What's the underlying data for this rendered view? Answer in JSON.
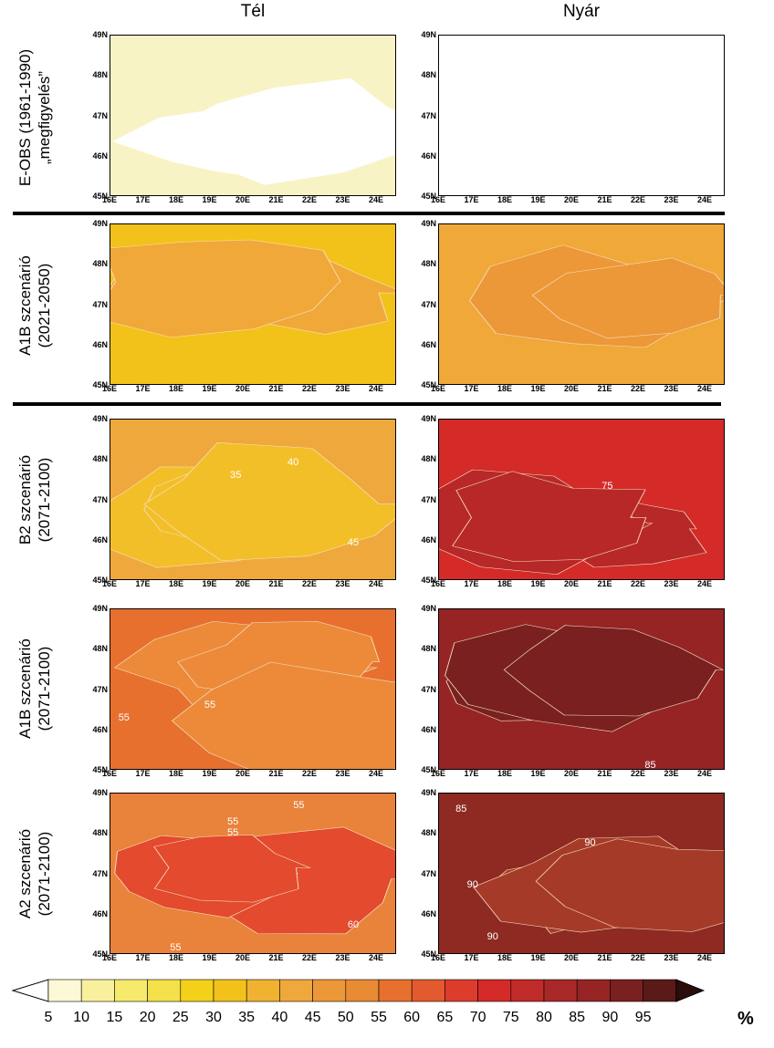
{
  "columns": [
    "Tél",
    "Nyár"
  ],
  "rows": [
    {
      "label_line1": "E-OBS (1961-1990)",
      "label_line2": "„megfigyelés”"
    },
    {
      "label_line1": "A1B szcenárió",
      "label_line2": "(2021-2050)"
    },
    {
      "label_line1": "B2 szcenárió",
      "label_line2": "(2071-2100)"
    },
    {
      "label_line1": "A1B szcenárió",
      "label_line2": "(2071-2100)"
    },
    {
      "label_line1": "A2 szcenárió",
      "label_line2": "(2071-2100)"
    }
  ],
  "lat_ticks": [
    "49N",
    "48N",
    "47N",
    "46N",
    "45N"
  ],
  "lon_ticks": [
    "16E",
    "17E",
    "18E",
    "19E",
    "20E",
    "21E",
    "22E",
    "23E",
    "24E"
  ],
  "maps": [
    {
      "id": "eobs-winter",
      "base": "#f8f3c4",
      "patch": "#ffffff",
      "labels": []
    },
    {
      "id": "eobs-summer",
      "base": "#ffffff",
      "patch": "#ffffff",
      "labels": []
    },
    {
      "id": "a1b2021-winter",
      "base": "#f3c21a",
      "patch": "#f0a838",
      "labels": []
    },
    {
      "id": "a1b2021-summer",
      "base": "#f0a838",
      "patch": "#ec9838",
      "labels": []
    },
    {
      "id": "b2-winter",
      "base": "#efa83c",
      "patch": "#f3bf28",
      "labels": [
        "35",
        "40",
        "45"
      ]
    },
    {
      "id": "b2-summer",
      "base": "#d42a28",
      "patch": "#b82828",
      "labels": [
        "75"
      ]
    },
    {
      "id": "a1b2071-winter",
      "base": "#e8702e",
      "patch": "#ec8a3a",
      "labels": [
        "55",
        "55"
      ]
    },
    {
      "id": "a1b2071-summer",
      "base": "#962424",
      "patch": "#7a2020",
      "labels": [
        "85"
      ]
    },
    {
      "id": "a2-winter",
      "base": "#e9823a",
      "patch": "#e34a2e",
      "labels": [
        "55",
        "55",
        "55",
        "60",
        "55"
      ]
    },
    {
      "id": "a2-summer",
      "base": "#8e2a22",
      "patch": "#a63a28",
      "labels": [
        "85",
        "90",
        "90",
        "90"
      ]
    }
  ],
  "legend": {
    "values": [
      "5",
      "10",
      "15",
      "20",
      "25",
      "30",
      "35",
      "40",
      "45",
      "50",
      "55",
      "60",
      "65",
      "70",
      "75",
      "80",
      "85",
      "90",
      "95"
    ],
    "colors": [
      "#fdf8d6",
      "#f8f09c",
      "#f5ea6c",
      "#f4e048",
      "#f3d118",
      "#f3c21a",
      "#f0b230",
      "#efa83c",
      "#ec9838",
      "#e98a35",
      "#e8702e",
      "#e35a2e",
      "#dd3c2c",
      "#d42a28",
      "#c02a28",
      "#a82828",
      "#962424",
      "#7a2020",
      "#5a1a18"
    ],
    "unit": "%"
  }
}
